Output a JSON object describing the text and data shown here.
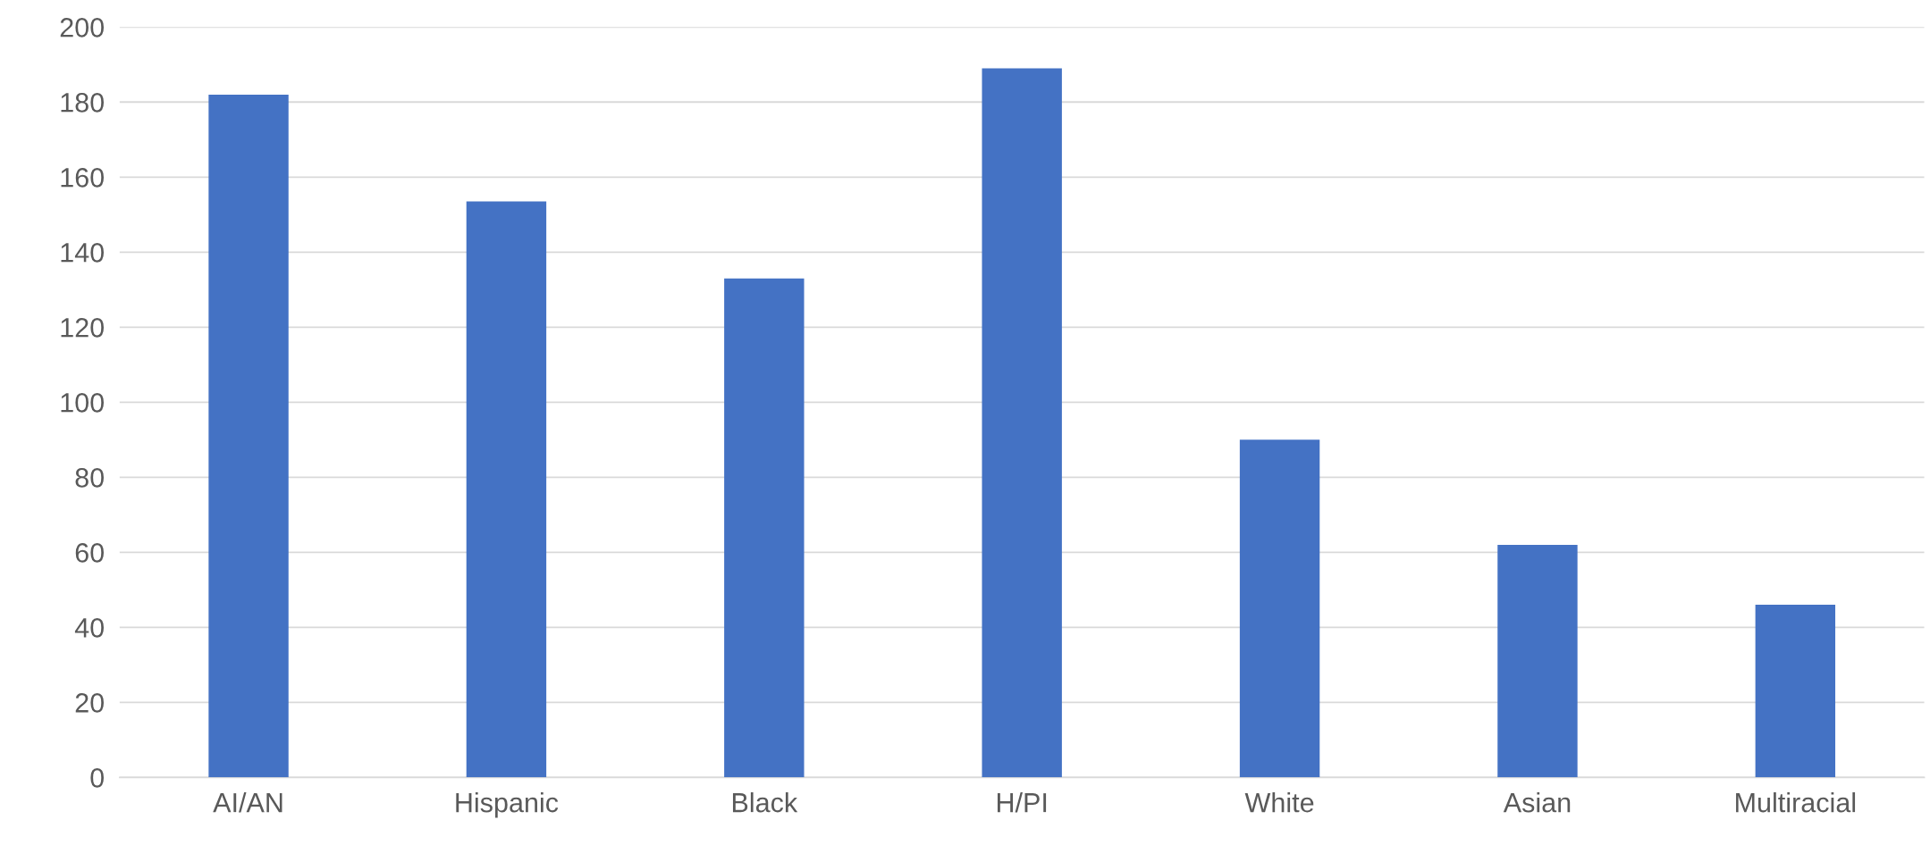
{
  "chart_data": {
    "type": "bar",
    "categories": [
      "AI/AN",
      "Hispanic",
      "Black",
      "H/PI",
      "White",
      "Asian",
      "Multiracial"
    ],
    "values": [
      182,
      153.5,
      133,
      189,
      90,
      62,
      46
    ],
    "color": "#4472c4",
    "ylim": [
      0,
      200
    ],
    "yticks": [
      0,
      20,
      40,
      60,
      80,
      100,
      120,
      140,
      160,
      180,
      200
    ],
    "grid": "y",
    "legend": false
  }
}
